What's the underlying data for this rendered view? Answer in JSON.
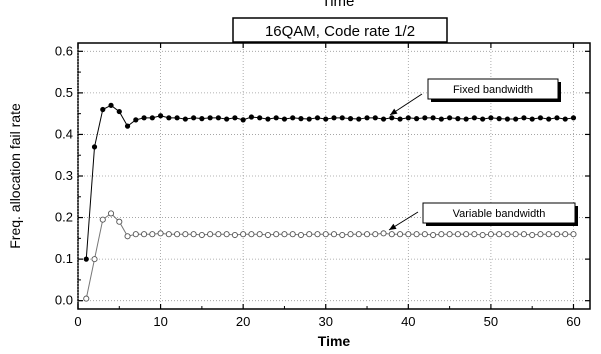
{
  "chart_data": {
    "type": "line",
    "title": "16QAM, Code rate 1/2",
    "top_label": "Time",
    "xlabel": "Time",
    "ylabel": "Freq. allocation fail rate",
    "xlim": [
      0,
      62
    ],
    "ylim": [
      -0.02,
      0.62
    ],
    "x_ticks": [
      0,
      10,
      20,
      30,
      40,
      50,
      60
    ],
    "y_ticks": [
      0.0,
      0.1,
      0.2,
      0.3,
      0.4,
      0.5,
      0.6
    ],
    "x_tick_labels": [
      "0",
      "10",
      "20",
      "30",
      "40",
      "50",
      "60"
    ],
    "y_tick_labels": [
      "0.0",
      "0.1",
      "0.2",
      "0.3",
      "0.4",
      "0.5",
      "0.6"
    ],
    "grid": true,
    "series": [
      {
        "name": "Fixed bandwidth",
        "marker": "filled-circle",
        "color": "#000000",
        "x": [
          1,
          2,
          3,
          4,
          5,
          6,
          7,
          8,
          9,
          10,
          11,
          12,
          13,
          14,
          15,
          16,
          17,
          18,
          19,
          20,
          21,
          22,
          23,
          24,
          25,
          26,
          27,
          28,
          29,
          30,
          31,
          32,
          33,
          34,
          35,
          36,
          37,
          38,
          39,
          40,
          41,
          42,
          43,
          44,
          45,
          46,
          47,
          48,
          49,
          50,
          51,
          52,
          53,
          54,
          55,
          56,
          57,
          58,
          59,
          60
        ],
        "values": [
          0.1,
          0.37,
          0.46,
          0.47,
          0.455,
          0.42,
          0.435,
          0.44,
          0.44,
          0.445,
          0.44,
          0.44,
          0.437,
          0.44,
          0.438,
          0.44,
          0.44,
          0.437,
          0.44,
          0.435,
          0.442,
          0.44,
          0.437,
          0.44,
          0.437,
          0.44,
          0.438,
          0.437,
          0.44,
          0.437,
          0.44,
          0.44,
          0.438,
          0.437,
          0.44,
          0.44,
          0.437,
          0.44,
          0.437,
          0.44,
          0.438,
          0.44,
          0.44,
          0.437,
          0.44,
          0.438,
          0.437,
          0.44,
          0.437,
          0.44,
          0.438,
          0.437,
          0.437,
          0.44,
          0.437,
          0.44,
          0.437,
          0.44,
          0.437,
          0.44
        ]
      },
      {
        "name": "Variable bandwidth",
        "marker": "open-circle",
        "color": "#000000",
        "x": [
          1,
          2,
          3,
          4,
          5,
          6,
          7,
          8,
          9,
          10,
          11,
          12,
          13,
          14,
          15,
          16,
          17,
          18,
          19,
          20,
          21,
          22,
          23,
          24,
          25,
          26,
          27,
          28,
          29,
          30,
          31,
          32,
          33,
          34,
          35,
          36,
          37,
          38,
          39,
          40,
          41,
          42,
          43,
          44,
          45,
          46,
          47,
          48,
          49,
          50,
          51,
          52,
          53,
          54,
          55,
          56,
          57,
          58,
          59,
          60
        ],
        "values": [
          0.005,
          0.1,
          0.195,
          0.21,
          0.19,
          0.155,
          0.16,
          0.16,
          0.16,
          0.162,
          0.16,
          0.16,
          0.16,
          0.16,
          0.158,
          0.16,
          0.16,
          0.16,
          0.158,
          0.16,
          0.16,
          0.16,
          0.158,
          0.16,
          0.16,
          0.16,
          0.158,
          0.16,
          0.16,
          0.16,
          0.16,
          0.158,
          0.16,
          0.16,
          0.16,
          0.16,
          0.162,
          0.16,
          0.16,
          0.16,
          0.16,
          0.16,
          0.158,
          0.16,
          0.16,
          0.16,
          0.16,
          0.16,
          0.158,
          0.16,
          0.16,
          0.16,
          0.16,
          0.16,
          0.158,
          0.16,
          0.16,
          0.16,
          0.16,
          0.16
        ]
      }
    ],
    "annotations": [
      {
        "text": "Fixed bandwidth",
        "target_series": 0
      },
      {
        "text": "Variable bandwidth",
        "target_series": 1
      }
    ]
  }
}
